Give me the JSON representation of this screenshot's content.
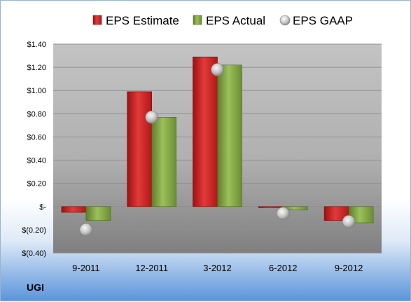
{
  "ticker": "UGI",
  "chart_data": {
    "type": "bar",
    "categories": [
      "9-2011",
      "12-2011",
      "3-2012",
      "6-2012",
      "9-2012"
    ],
    "series": [
      {
        "name": "EPS Estimate",
        "kind": "bar",
        "color": "#d42a2a",
        "values": [
          -0.05,
          0.99,
          1.29,
          -0.01,
          -0.12
        ]
      },
      {
        "name": "EPS Actual",
        "kind": "bar",
        "color": "#8cae4a",
        "values": [
          -0.12,
          0.77,
          1.22,
          -0.03,
          -0.14
        ]
      },
      {
        "name": "EPS GAAP",
        "kind": "scatter",
        "color": "#b8b8b8",
        "values": [
          -0.2,
          0.77,
          1.18,
          -0.06,
          -0.13
        ]
      }
    ],
    "ylim": [
      -0.4,
      1.4
    ],
    "yticks": [
      -0.4,
      -0.2,
      0,
      0.2,
      0.4,
      0.6,
      0.8,
      1.0,
      1.2,
      1.4
    ],
    "ytick_labels": [
      "$(0.40)",
      "$(0.20)",
      "$-",
      "$0.20",
      "$0.40",
      "$0.60",
      "$0.80",
      "$1.00",
      "$1.20",
      "$1.40"
    ],
    "grid": true,
    "legend_position": "top"
  }
}
